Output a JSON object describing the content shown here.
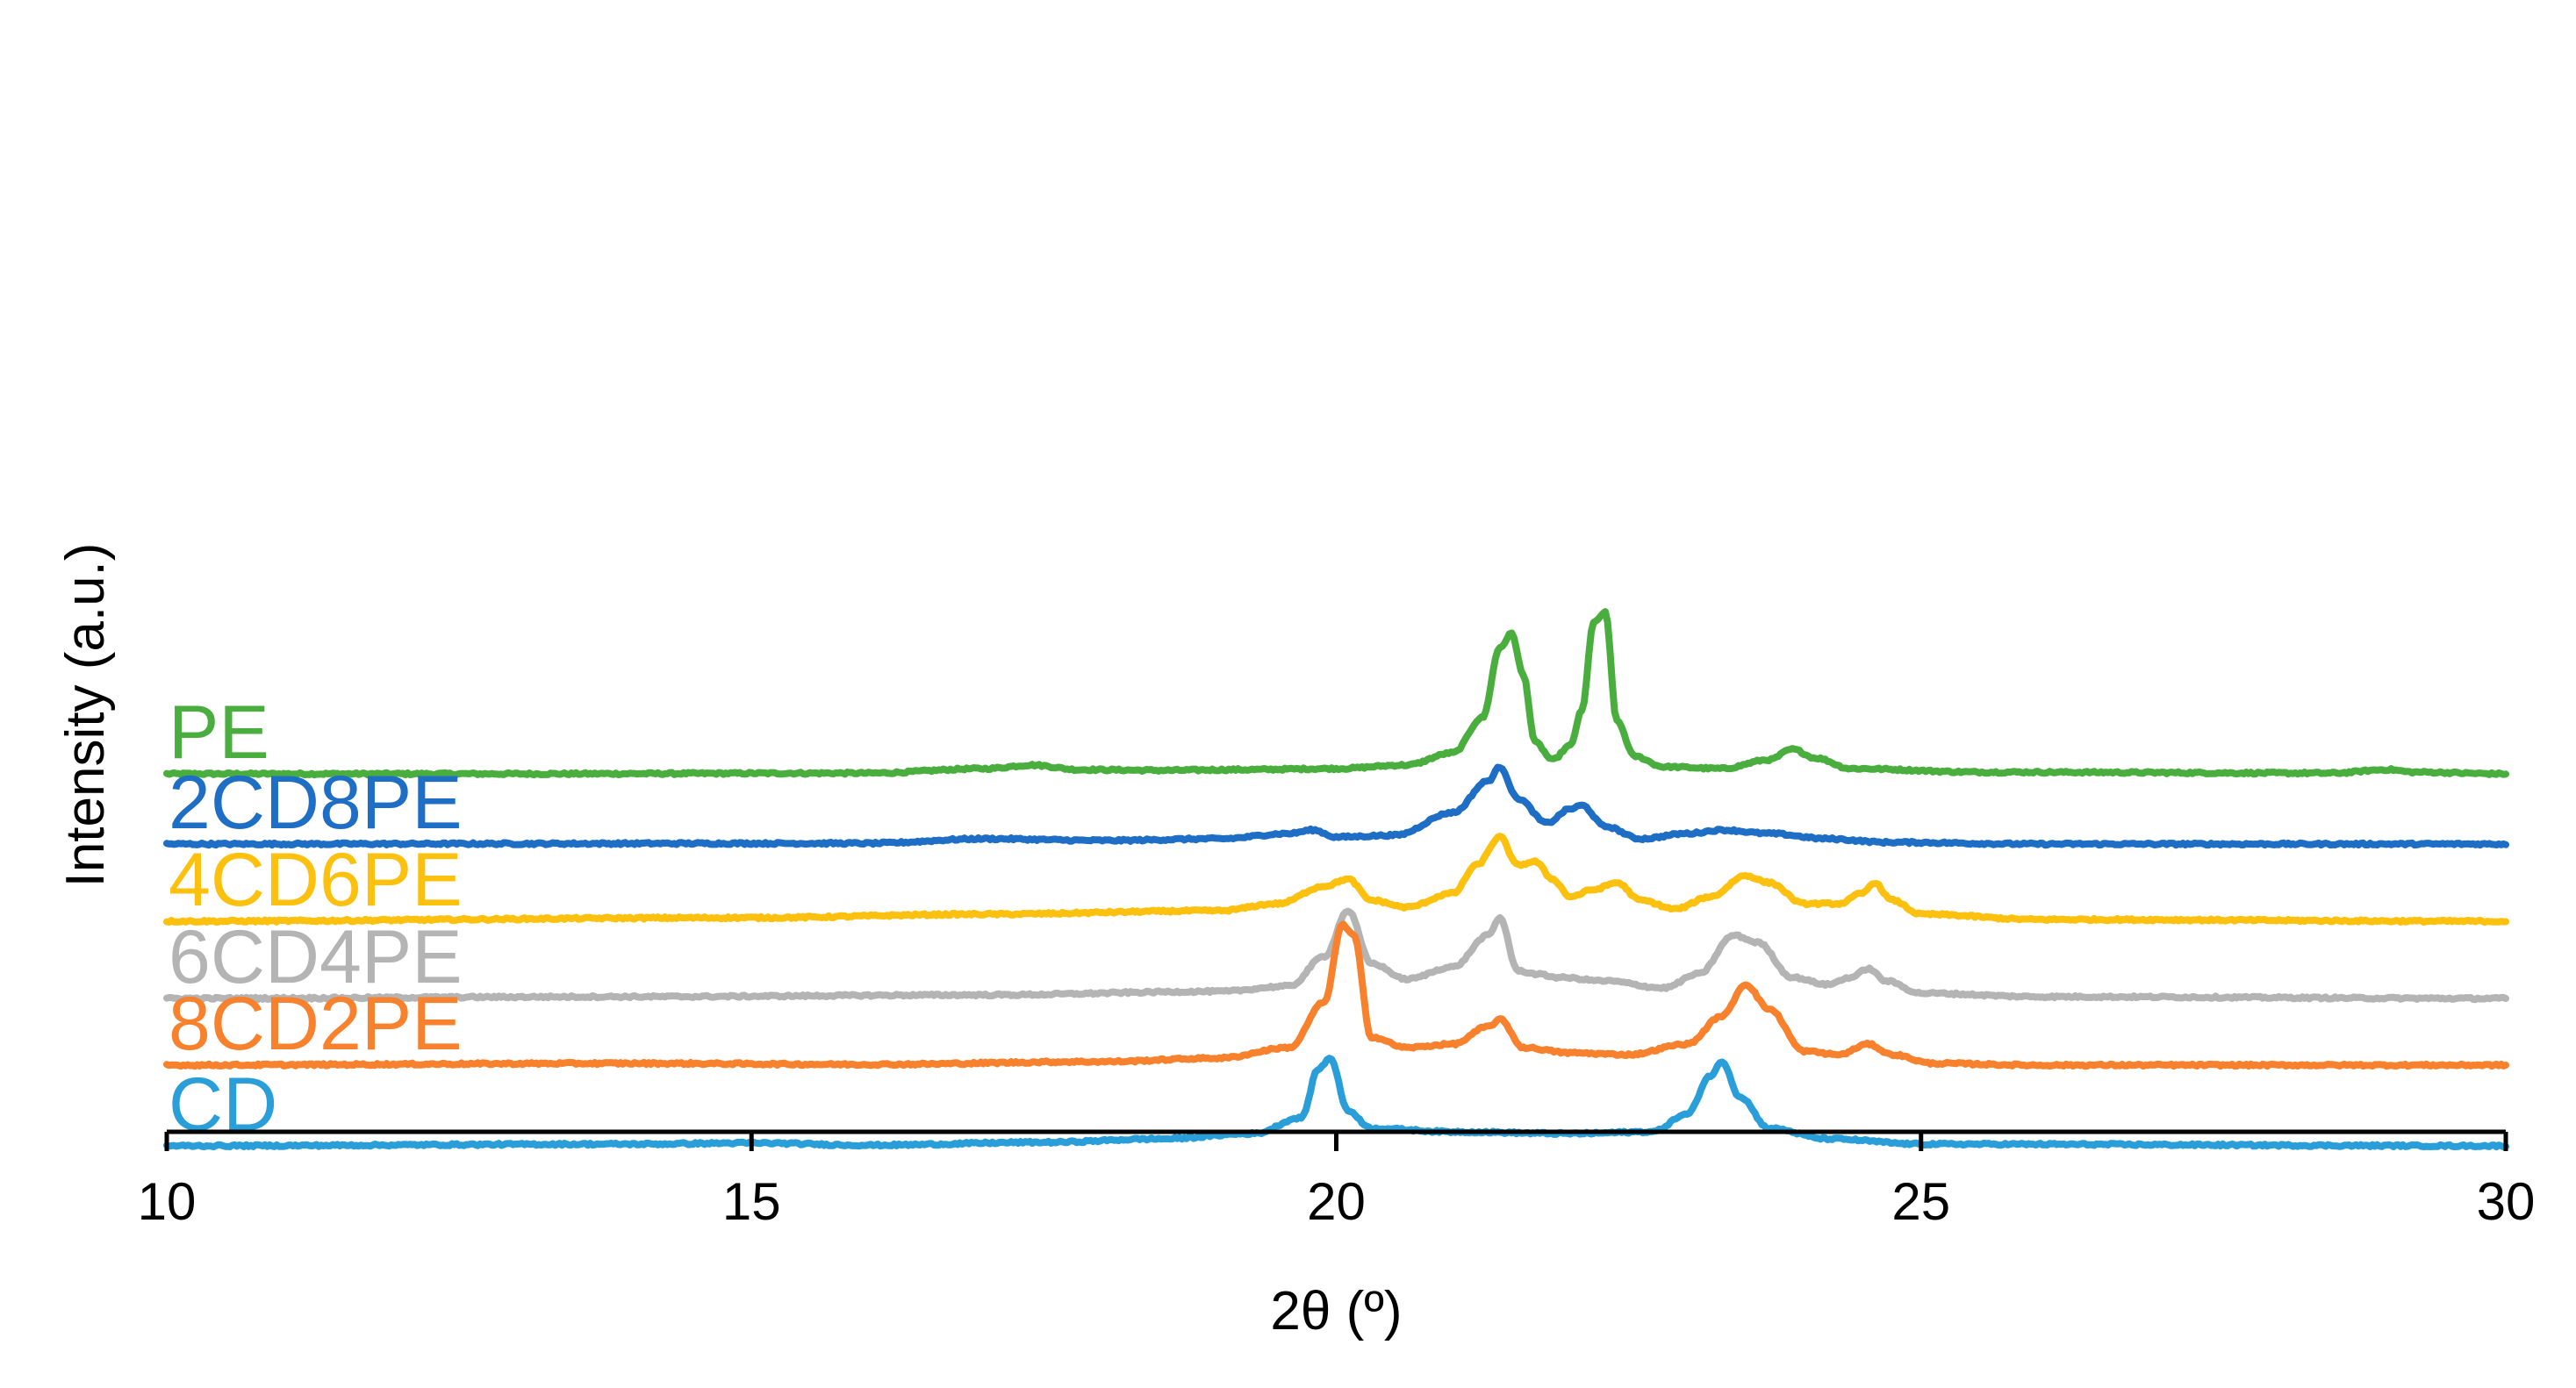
{
  "chart_data": {
    "type": "line",
    "xlabel": "2θ (º)",
    "ylabel": "Intensity (a.u.)",
    "xlim": [
      10,
      30
    ],
    "xticks": [
      10,
      15,
      20,
      25,
      30
    ],
    "y_ticks_shown": false,
    "grid": false,
    "legend": "inline labels at left of each trace",
    "series": [
      {
        "name": "PE",
        "color": "#4aae3e",
        "baseline": 5.0,
        "points": [
          [
            10,
            0.0
          ],
          [
            13,
            0.0
          ],
          [
            16,
            0.02
          ],
          [
            17,
            0.15
          ],
          [
            17.4,
            0.25
          ],
          [
            17.8,
            0.12
          ],
          [
            18.5,
            0.1
          ],
          [
            19.2,
            0.12
          ],
          [
            20.0,
            0.15
          ],
          [
            20.6,
            0.25
          ],
          [
            21.0,
            0.6
          ],
          [
            21.25,
            1.6
          ],
          [
            21.4,
            3.6
          ],
          [
            21.5,
            4.0
          ],
          [
            21.6,
            2.8
          ],
          [
            21.7,
            0.9
          ],
          [
            21.85,
            0.4
          ],
          [
            22.0,
            0.8
          ],
          [
            22.1,
            1.8
          ],
          [
            22.2,
            4.3
          ],
          [
            22.3,
            4.6
          ],
          [
            22.4,
            1.5
          ],
          [
            22.55,
            0.5
          ],
          [
            22.8,
            0.2
          ],
          [
            23.3,
            0.15
          ],
          [
            23.7,
            0.4
          ],
          [
            23.9,
            0.7
          ],
          [
            24.1,
            0.45
          ],
          [
            24.4,
            0.15
          ],
          [
            25.5,
            0.05
          ],
          [
            28.5,
            0.02
          ],
          [
            29.0,
            0.12
          ],
          [
            29.2,
            0.05
          ],
          [
            30,
            0.0
          ]
        ]
      },
      {
        "name": "2CD8PE",
        "color": "#1d6ec4",
        "baseline": 3.0,
        "points": [
          [
            10,
            0.0
          ],
          [
            16,
            0.02
          ],
          [
            17,
            0.15
          ],
          [
            18,
            0.1
          ],
          [
            19,
            0.15
          ],
          [
            19.6,
            0.3
          ],
          [
            19.8,
            0.4
          ],
          [
            20.0,
            0.2
          ],
          [
            20.5,
            0.25
          ],
          [
            21.0,
            0.9
          ],
          [
            21.3,
            1.8
          ],
          [
            21.4,
            2.2
          ],
          [
            21.55,
            1.3
          ],
          [
            21.8,
            0.6
          ],
          [
            22.0,
            1.0
          ],
          [
            22.1,
            1.1
          ],
          [
            22.3,
            0.5
          ],
          [
            22.6,
            0.15
          ],
          [
            23.0,
            0.3
          ],
          [
            23.3,
            0.4
          ],
          [
            23.7,
            0.3
          ],
          [
            24.2,
            0.15
          ],
          [
            24.7,
            0.05
          ],
          [
            26,
            0.0
          ],
          [
            30,
            0.0
          ]
        ]
      },
      {
        "name": "4CD6PE",
        "color": "#fcc00e",
        "baseline": 0.8,
        "points": [
          [
            10,
            0.0
          ],
          [
            15,
            0.1
          ],
          [
            17,
            0.2
          ],
          [
            19,
            0.3
          ],
          [
            19.5,
            0.5
          ],
          [
            19.9,
            1.0
          ],
          [
            20.1,
            1.2
          ],
          [
            20.3,
            0.6
          ],
          [
            20.6,
            0.4
          ],
          [
            21.0,
            0.8
          ],
          [
            21.2,
            1.6
          ],
          [
            21.4,
            2.4
          ],
          [
            21.55,
            1.6
          ],
          [
            21.7,
            1.7
          ],
          [
            21.85,
            1.2
          ],
          [
            22.0,
            0.7
          ],
          [
            22.2,
            0.9
          ],
          [
            22.4,
            1.1
          ],
          [
            22.6,
            0.6
          ],
          [
            22.9,
            0.35
          ],
          [
            23.2,
            0.7
          ],
          [
            23.5,
            1.3
          ],
          [
            23.7,
            1.1
          ],
          [
            24.0,
            0.5
          ],
          [
            24.3,
            0.5
          ],
          [
            24.5,
            0.8
          ],
          [
            24.6,
            1.1
          ],
          [
            24.75,
            0.6
          ],
          [
            25.0,
            0.2
          ],
          [
            26,
            0.05
          ],
          [
            30,
            0.0
          ]
        ]
      },
      {
        "name": "6CD4PE",
        "color": "#b4b4b4",
        "baseline": -1.4,
        "points": [
          [
            10,
            0.0
          ],
          [
            14,
            0.05
          ],
          [
            17,
            0.1
          ],
          [
            19,
            0.2
          ],
          [
            19.6,
            0.35
          ],
          [
            19.9,
            1.2
          ],
          [
            20.1,
            2.5
          ],
          [
            20.3,
            1.0
          ],
          [
            20.6,
            0.55
          ],
          [
            21.0,
            0.9
          ],
          [
            21.3,
            1.8
          ],
          [
            21.4,
            2.3
          ],
          [
            21.55,
            0.8
          ],
          [
            21.7,
            0.7
          ],
          [
            21.9,
            0.6
          ],
          [
            22.3,
            0.5
          ],
          [
            22.8,
            0.3
          ],
          [
            23.1,
            0.7
          ],
          [
            23.4,
            1.8
          ],
          [
            23.6,
            1.6
          ],
          [
            23.9,
            0.6
          ],
          [
            24.2,
            0.4
          ],
          [
            24.4,
            0.6
          ],
          [
            24.55,
            0.85
          ],
          [
            24.7,
            0.5
          ],
          [
            25.0,
            0.15
          ],
          [
            26,
            0.05
          ],
          [
            30,
            0.0
          ]
        ]
      },
      {
        "name": "8CD2PE",
        "color": "#f7812c",
        "baseline": -3.3,
        "points": [
          [
            10,
            0.0
          ],
          [
            14,
            0.05
          ],
          [
            16,
            0.02
          ],
          [
            18,
            0.1
          ],
          [
            19,
            0.2
          ],
          [
            19.6,
            0.5
          ],
          [
            19.9,
            1.8
          ],
          [
            20.05,
            4.0
          ],
          [
            20.15,
            3.7
          ],
          [
            20.3,
            0.8
          ],
          [
            20.6,
            0.5
          ],
          [
            21.0,
            0.6
          ],
          [
            21.3,
            1.1
          ],
          [
            21.4,
            1.3
          ],
          [
            21.6,
            0.5
          ],
          [
            22.0,
            0.35
          ],
          [
            22.5,
            0.3
          ],
          [
            23.0,
            0.6
          ],
          [
            23.3,
            1.4
          ],
          [
            23.5,
            2.3
          ],
          [
            23.7,
            1.6
          ],
          [
            24.0,
            0.4
          ],
          [
            24.3,
            0.3
          ],
          [
            24.55,
            0.6
          ],
          [
            24.75,
            0.3
          ],
          [
            25.1,
            0.05
          ],
          [
            26,
            0.0
          ],
          [
            30,
            0.0
          ]
        ]
      },
      {
        "name": "CD",
        "color": "#2a9ed9",
        "baseline": -5.6,
        "points": [
          [
            10,
            0.0
          ],
          [
            14,
            0.05
          ],
          [
            15,
            0.08
          ],
          [
            16,
            0.02
          ],
          [
            17.5,
            0.1
          ],
          [
            18.5,
            0.2
          ],
          [
            19.3,
            0.35
          ],
          [
            19.7,
            0.8
          ],
          [
            19.85,
            2.2
          ],
          [
            19.95,
            2.5
          ],
          [
            20.1,
            1.0
          ],
          [
            20.3,
            0.5
          ],
          [
            21,
            0.4
          ],
          [
            22,
            0.35
          ],
          [
            22.7,
            0.4
          ],
          [
            23.0,
            0.9
          ],
          [
            23.2,
            2.0
          ],
          [
            23.3,
            2.4
          ],
          [
            23.45,
            1.4
          ],
          [
            23.7,
            0.5
          ],
          [
            24.2,
            0.2
          ],
          [
            25,
            0.05
          ],
          [
            30,
            0.0
          ]
        ]
      }
    ]
  }
}
